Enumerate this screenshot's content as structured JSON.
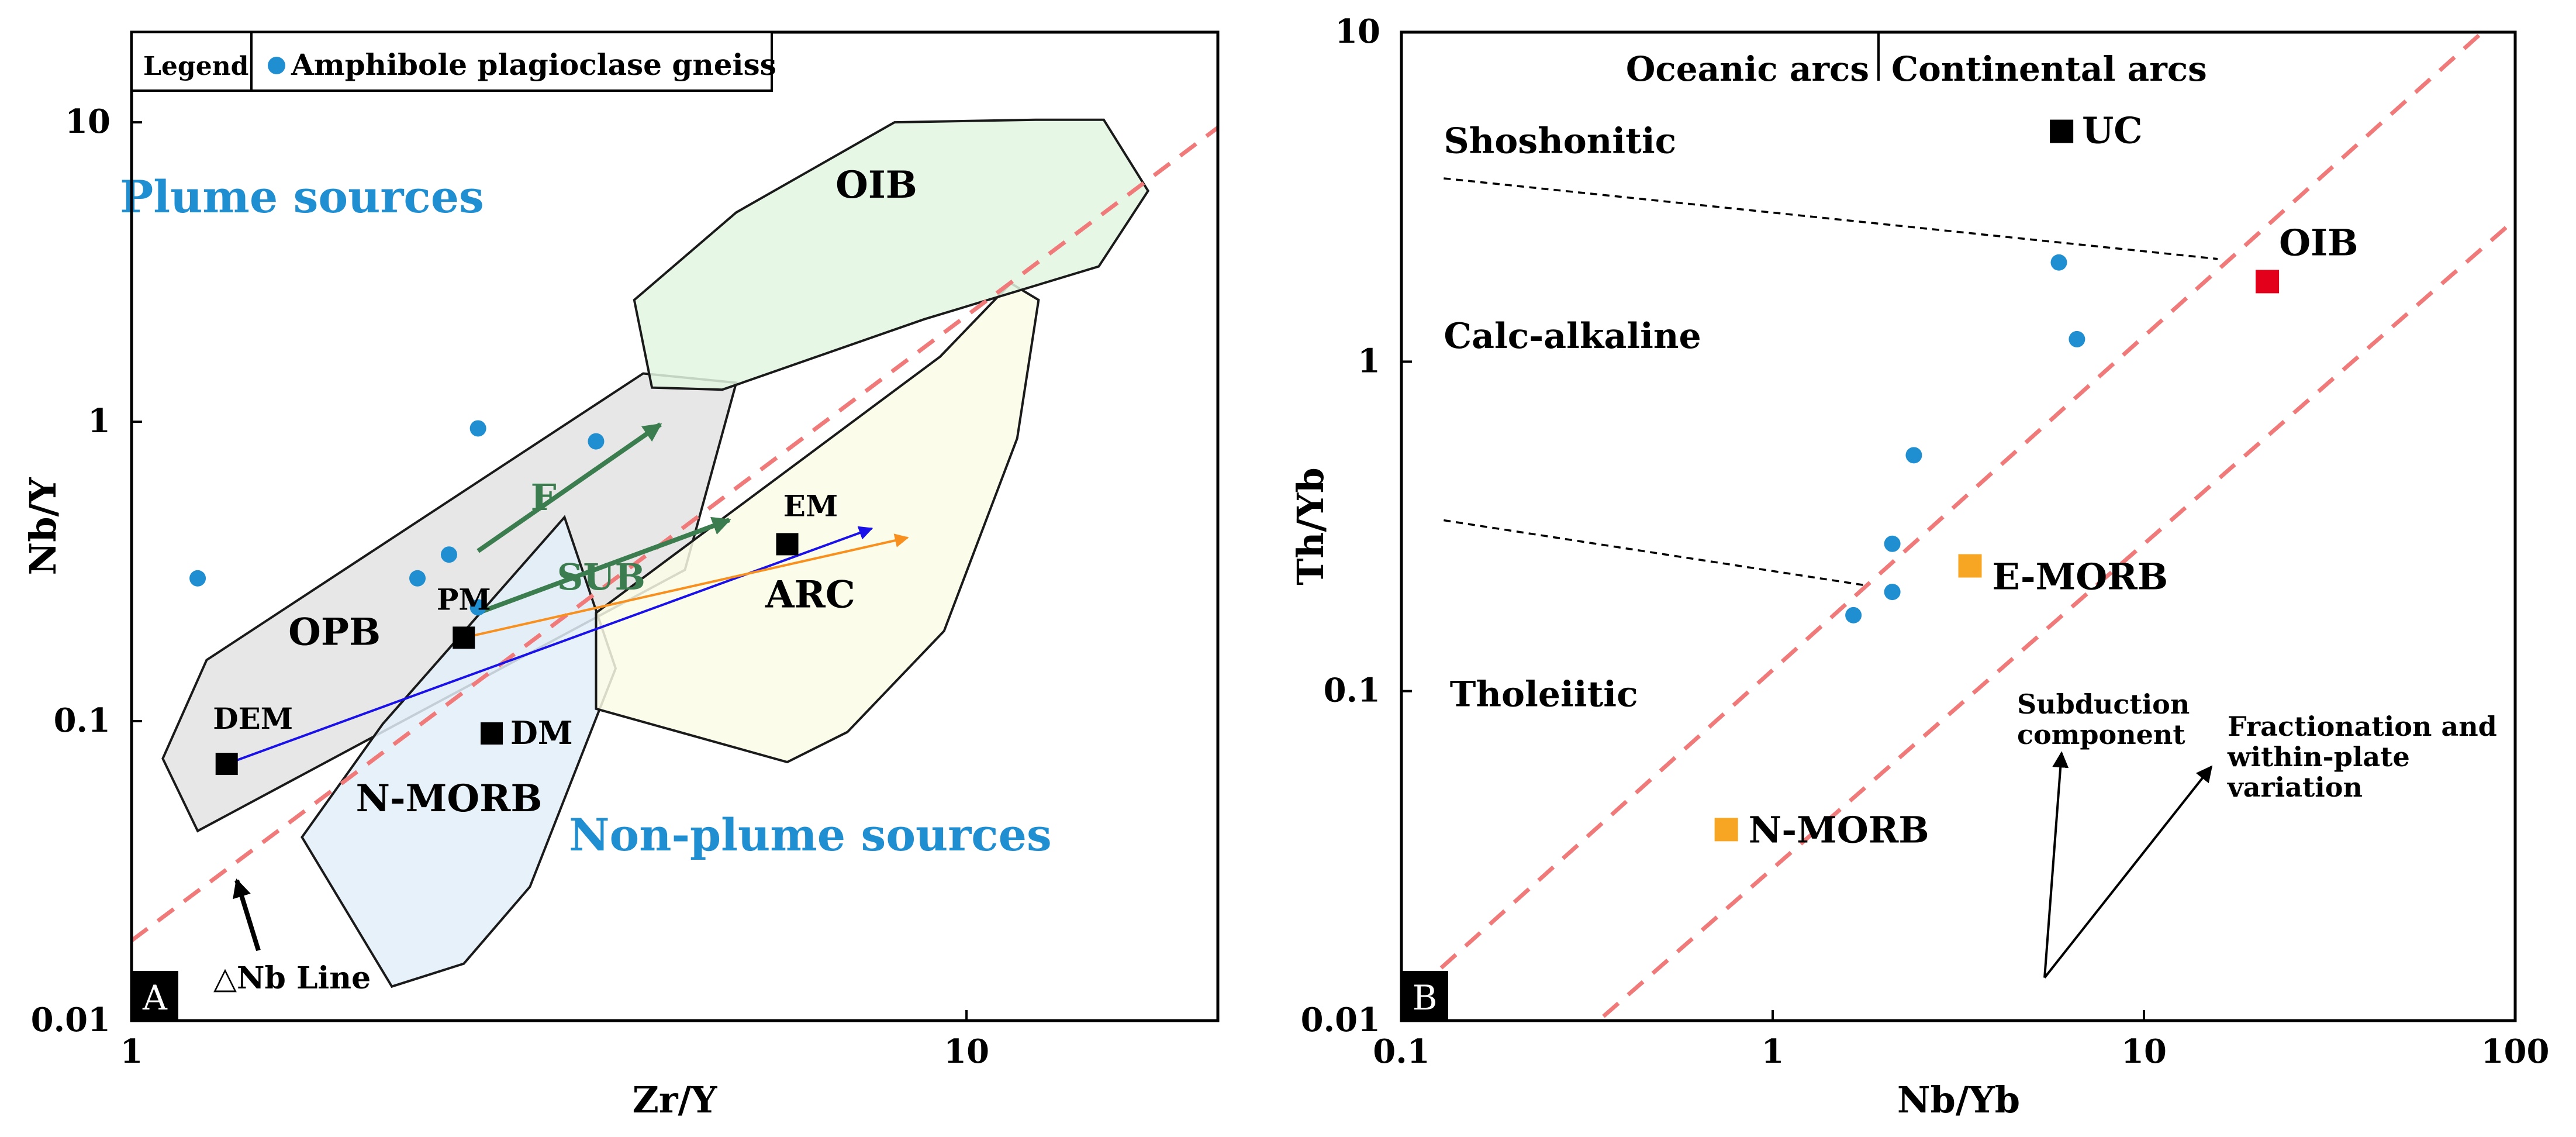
{
  "figure": {
    "panels": [
      "A",
      "B"
    ]
  },
  "chart_data": [
    {
      "panel": "A",
      "type": "scatter",
      "x_scale": "log",
      "y_scale": "log",
      "xlim": [
        1,
        20
      ],
      "ylim": [
        0.01,
        20
      ],
      "xlabel": "Zr/Y",
      "ylabel": "Nb/Y",
      "x_ticks": [
        {
          "v": 1,
          "label": "1"
        },
        {
          "v": 10,
          "label": "10"
        }
      ],
      "y_ticks": [
        {
          "v": 0.01,
          "label": "0.01"
        },
        {
          "v": 0.1,
          "label": "0.1"
        },
        {
          "v": 1,
          "label": "1"
        },
        {
          "v": 10,
          "label": "10"
        }
      ],
      "legend": {
        "position": "top-left",
        "title": "Legend",
        "entry": "Amphibole plagioclase gneiss",
        "color": "#1f8fd1"
      },
      "samples": {
        "name": "Amphibole plagioclase gneiss",
        "color": "#1f8fd1",
        "points": [
          {
            "x": 1.2,
            "y": 0.3
          },
          {
            "x": 2.2,
            "y": 0.3
          },
          {
            "x": 2.4,
            "y": 0.36
          },
          {
            "x": 2.6,
            "y": 0.24
          },
          {
            "x": 2.6,
            "y": 0.95
          },
          {
            "x": 3.6,
            "y": 0.86
          }
        ]
      },
      "fields": [
        {
          "name": "OPB",
          "fill": "#e3e3e3",
          "polygon": [
            [
              1.09,
              0.075
            ],
            [
              1.23,
              0.16
            ],
            [
              4.1,
              1.45
            ],
            [
              5.3,
              1.35
            ],
            [
              4.6,
              0.32
            ],
            [
              1.2,
              0.043
            ]
          ]
        },
        {
          "name": "N-MORB",
          "fill": "#e3eff8",
          "polygon": [
            [
              3.3,
              0.48
            ],
            [
              3.8,
              0.15
            ],
            [
              3.0,
              0.028
            ],
            [
              2.5,
              0.0155
            ],
            [
              2.05,
              0.013
            ],
            [
              1.6,
              0.041
            ],
            [
              2.0,
              0.098
            ]
          ]
        },
        {
          "name": "ARC",
          "fill": "#fcfbe8",
          "polygon": [
            [
              3.6,
              0.23
            ],
            [
              9.3,
              1.65
            ],
            [
              11.3,
              2.9
            ],
            [
              12.2,
              2.55
            ],
            [
              11.5,
              0.88
            ],
            [
              9.4,
              0.2
            ],
            [
              7.2,
              0.092
            ],
            [
              6.1,
              0.073
            ],
            [
              3.6,
              0.11
            ]
          ]
        },
        {
          "name": "OIB",
          "fill": "#e2f6e2",
          "polygon": [
            [
              4.0,
              2.55
            ],
            [
              4.2,
              1.3
            ],
            [
              5.1,
              1.28
            ],
            [
              8.9,
              2.2
            ],
            [
              14.4,
              3.3
            ],
            [
              16.5,
              5.9
            ],
            [
              14.6,
              10.2
            ],
            [
              12.1,
              10.2
            ],
            [
              8.2,
              10.0
            ],
            [
              5.3,
              5.0
            ]
          ]
        }
      ],
      "delta_nb_line": {
        "label": "△Nb Line",
        "color": "#f07a7a",
        "from": {
          "x": 1,
          "y": 0.0185
        },
        "to": {
          "x": 20,
          "y": 9.6
        }
      },
      "endmembers": [
        {
          "name": "PM",
          "x": 2.5,
          "y": 0.19
        },
        {
          "name": "EM",
          "x": 6.1,
          "y": 0.39
        },
        {
          "name": "DM",
          "x": 2.7,
          "y": 0.091
        },
        {
          "name": "DEM",
          "x": 1.3,
          "y": 0.072
        }
      ],
      "vectors": [
        {
          "name": "F",
          "color": "#3c7d4f",
          "from": {
            "x": 2.6,
            "y": 0.37
          },
          "to": {
            "x": 4.3,
            "y": 0.98
          }
        },
        {
          "name": "SUB",
          "color": "#3c7d4f",
          "from": {
            "x": 2.6,
            "y": 0.23
          },
          "to": {
            "x": 5.2,
            "y": 0.47
          }
        },
        {
          "name": "",
          "color": "#1a10e8",
          "from": {
            "x": 1.3,
            "y": 0.072
          },
          "to": {
            "x": 7.7,
            "y": 0.44
          }
        },
        {
          "name": "",
          "color": "#f7901e",
          "from": {
            "x": 2.5,
            "y": 0.19
          },
          "to": {
            "x": 8.5,
            "y": 0.41
          }
        }
      ],
      "annotations": [
        {
          "text": "Plume sources",
          "color": "#1f8fd1",
          "x": 1.6,
          "y": 5.0
        },
        {
          "text": "Non-plume sources",
          "color": "#1f8fd1",
          "x": 6.5,
          "y": 0.037
        },
        {
          "text": "OPB",
          "color": "#000000",
          "x": 1.75,
          "y": 0.18
        },
        {
          "text": "ARC",
          "color": "#000000",
          "x": 6.5,
          "y": 0.24
        },
        {
          "text": "OIB",
          "color": "#000000",
          "x": 7.8,
          "y": 5.6
        },
        {
          "text": "N-MORB",
          "color": "#000000",
          "x": 2.4,
          "y": 0.05
        }
      ]
    },
    {
      "panel": "B",
      "type": "scatter",
      "x_scale": "log",
      "y_scale": "log",
      "xlim": [
        0.1,
        100
      ],
      "ylim": [
        0.01,
        10
      ],
      "xlabel": "Nb/Yb",
      "ylabel": "Th/Yb",
      "x_ticks": [
        {
          "v": 0.1,
          "label": "0.1"
        },
        {
          "v": 1,
          "label": "1"
        },
        {
          "v": 10,
          "label": "10"
        },
        {
          "v": 100,
          "label": "100"
        }
      ],
      "y_ticks": [
        {
          "v": 0.01,
          "label": "0.01"
        },
        {
          "v": 0.1,
          "label": "0.1"
        },
        {
          "v": 1,
          "label": "1"
        },
        {
          "v": 10,
          "label": "10"
        }
      ],
      "samples": {
        "name": "Amphibole plagioclase gneiss",
        "color": "#1f8fd1",
        "points": [
          {
            "x": 5.9,
            "y": 2.0
          },
          {
            "x": 6.6,
            "y": 1.17
          },
          {
            "x": 2.4,
            "y": 0.52
          },
          {
            "x": 2.1,
            "y": 0.28
          },
          {
            "x": 2.1,
            "y": 0.2
          },
          {
            "x": 1.65,
            "y": 0.17
          }
        ]
      },
      "references": [
        {
          "name": "UC",
          "x": 6.0,
          "y": 5.0,
          "color": "#000000"
        },
        {
          "name": "OIB",
          "x": 21.5,
          "y": 1.75,
          "color": "#e3001b"
        },
        {
          "name": "E-MORB",
          "x": 3.4,
          "y": 0.24,
          "color": "#f7a623"
        },
        {
          "name": "N-MORB",
          "x": 0.75,
          "y": 0.038,
          "color": "#f7a623"
        }
      ],
      "mantle_array": {
        "color": "#f07a7a",
        "lines": [
          {
            "from": {
              "x": 0.11,
              "y": 0.0124
            },
            "to": {
              "x": 80,
              "y": 9.8
            }
          },
          {
            "from": {
              "x": 0.35,
              "y": 0.0103
            },
            "to": {
              "x": 100,
              "y": 2.7
            }
          }
        ]
      },
      "boundaries": [
        {
          "name": "shoshonitic-calc-alkaline",
          "from": {
            "x": 0.13,
            "y": 3.6
          },
          "to": {
            "x": 15.8,
            "y": 2.05
          }
        },
        {
          "name": "calc-alkaline-tholeiitic",
          "from": {
            "x": 0.13,
            "y": 0.33
          },
          "to": {
            "x": 1.75,
            "y": 0.21
          }
        }
      ],
      "arc_labels": {
        "oceanic": "Oceanic arcs",
        "continental": "Continental arcs"
      },
      "series_labels": [
        {
          "text": "Shoshonitic",
          "x": 0.13,
          "y": 4.3
        },
        {
          "text": "Calc-alkaline",
          "x": 0.13,
          "y": 1.1
        },
        {
          "text": "Tholeiitic",
          "x": 0.135,
          "y": 0.09
        }
      ],
      "vectors": [
        {
          "label_lines": [
            "Subduction",
            "component"
          ],
          "from": {
            "x": 5.4,
            "y": 0.0135
          },
          "to": {
            "x": 6.0,
            "y": 0.065
          }
        },
        {
          "label_lines": [
            "Fractionation and",
            "within-plate",
            "variation"
          ],
          "from": {
            "x": 5.4,
            "y": 0.0135
          },
          "to": {
            "x": 15.2,
            "y": 0.059
          }
        }
      ]
    }
  ]
}
